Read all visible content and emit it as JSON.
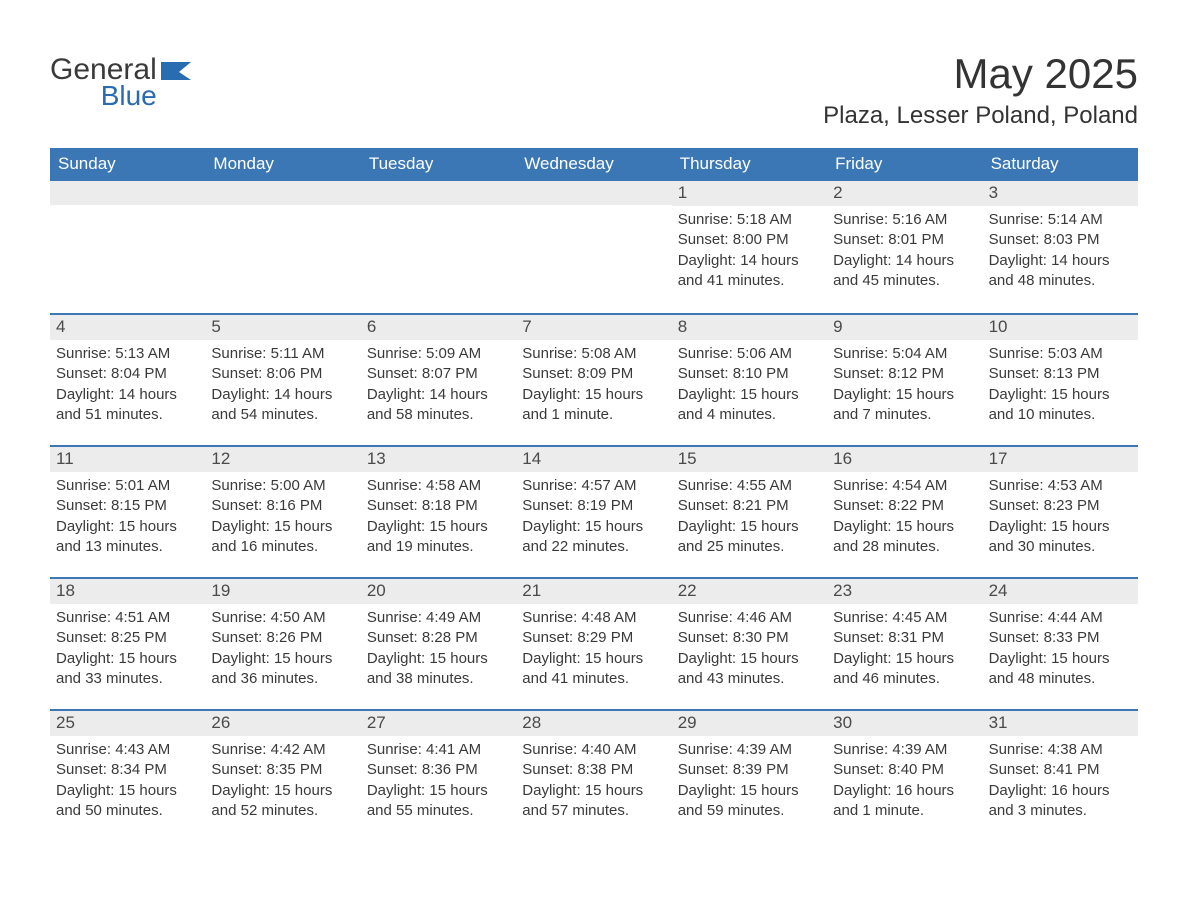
{
  "brand": {
    "word1": "General",
    "word2": "Blue"
  },
  "title": "May 2025",
  "location": "Plaza, Lesser Poland, Poland",
  "colors": {
    "header_bg": "#3b77b5",
    "header_text": "#ffffff",
    "daynum_bg": "#ececec",
    "text": "#3a3a3a",
    "border": "#3b77b5",
    "brand_blue": "#2a6cb0"
  },
  "daysOfWeek": [
    "Sunday",
    "Monday",
    "Tuesday",
    "Wednesday",
    "Thursday",
    "Friday",
    "Saturday"
  ],
  "blanksBefore": 4,
  "label_sunrise": "Sunrise: ",
  "label_sunset": "Sunset: ",
  "label_daylight": "Daylight: ",
  "days": [
    {
      "n": 1,
      "sunrise": "5:18 AM",
      "sunset": "8:00 PM",
      "daylight": "14 hours and 41 minutes."
    },
    {
      "n": 2,
      "sunrise": "5:16 AM",
      "sunset": "8:01 PM",
      "daylight": "14 hours and 45 minutes."
    },
    {
      "n": 3,
      "sunrise": "5:14 AM",
      "sunset": "8:03 PM",
      "daylight": "14 hours and 48 minutes."
    },
    {
      "n": 4,
      "sunrise": "5:13 AM",
      "sunset": "8:04 PM",
      "daylight": "14 hours and 51 minutes."
    },
    {
      "n": 5,
      "sunrise": "5:11 AM",
      "sunset": "8:06 PM",
      "daylight": "14 hours and 54 minutes."
    },
    {
      "n": 6,
      "sunrise": "5:09 AM",
      "sunset": "8:07 PM",
      "daylight": "14 hours and 58 minutes."
    },
    {
      "n": 7,
      "sunrise": "5:08 AM",
      "sunset": "8:09 PM",
      "daylight": "15 hours and 1 minute."
    },
    {
      "n": 8,
      "sunrise": "5:06 AM",
      "sunset": "8:10 PM",
      "daylight": "15 hours and 4 minutes."
    },
    {
      "n": 9,
      "sunrise": "5:04 AM",
      "sunset": "8:12 PM",
      "daylight": "15 hours and 7 minutes."
    },
    {
      "n": 10,
      "sunrise": "5:03 AM",
      "sunset": "8:13 PM",
      "daylight": "15 hours and 10 minutes."
    },
    {
      "n": 11,
      "sunrise": "5:01 AM",
      "sunset": "8:15 PM",
      "daylight": "15 hours and 13 minutes."
    },
    {
      "n": 12,
      "sunrise": "5:00 AM",
      "sunset": "8:16 PM",
      "daylight": "15 hours and 16 minutes."
    },
    {
      "n": 13,
      "sunrise": "4:58 AM",
      "sunset": "8:18 PM",
      "daylight": "15 hours and 19 minutes."
    },
    {
      "n": 14,
      "sunrise": "4:57 AM",
      "sunset": "8:19 PM",
      "daylight": "15 hours and 22 minutes."
    },
    {
      "n": 15,
      "sunrise": "4:55 AM",
      "sunset": "8:21 PM",
      "daylight": "15 hours and 25 minutes."
    },
    {
      "n": 16,
      "sunrise": "4:54 AM",
      "sunset": "8:22 PM",
      "daylight": "15 hours and 28 minutes."
    },
    {
      "n": 17,
      "sunrise": "4:53 AM",
      "sunset": "8:23 PM",
      "daylight": "15 hours and 30 minutes."
    },
    {
      "n": 18,
      "sunrise": "4:51 AM",
      "sunset": "8:25 PM",
      "daylight": "15 hours and 33 minutes."
    },
    {
      "n": 19,
      "sunrise": "4:50 AM",
      "sunset": "8:26 PM",
      "daylight": "15 hours and 36 minutes."
    },
    {
      "n": 20,
      "sunrise": "4:49 AM",
      "sunset": "8:28 PM",
      "daylight": "15 hours and 38 minutes."
    },
    {
      "n": 21,
      "sunrise": "4:48 AM",
      "sunset": "8:29 PM",
      "daylight": "15 hours and 41 minutes."
    },
    {
      "n": 22,
      "sunrise": "4:46 AM",
      "sunset": "8:30 PM",
      "daylight": "15 hours and 43 minutes."
    },
    {
      "n": 23,
      "sunrise": "4:45 AM",
      "sunset": "8:31 PM",
      "daylight": "15 hours and 46 minutes."
    },
    {
      "n": 24,
      "sunrise": "4:44 AM",
      "sunset": "8:33 PM",
      "daylight": "15 hours and 48 minutes."
    },
    {
      "n": 25,
      "sunrise": "4:43 AM",
      "sunset": "8:34 PM",
      "daylight": "15 hours and 50 minutes."
    },
    {
      "n": 26,
      "sunrise": "4:42 AM",
      "sunset": "8:35 PM",
      "daylight": "15 hours and 52 minutes."
    },
    {
      "n": 27,
      "sunrise": "4:41 AM",
      "sunset": "8:36 PM",
      "daylight": "15 hours and 55 minutes."
    },
    {
      "n": 28,
      "sunrise": "4:40 AM",
      "sunset": "8:38 PM",
      "daylight": "15 hours and 57 minutes."
    },
    {
      "n": 29,
      "sunrise": "4:39 AM",
      "sunset": "8:39 PM",
      "daylight": "15 hours and 59 minutes."
    },
    {
      "n": 30,
      "sunrise": "4:39 AM",
      "sunset": "8:40 PM",
      "daylight": "16 hours and 1 minute."
    },
    {
      "n": 31,
      "sunrise": "4:38 AM",
      "sunset": "8:41 PM",
      "daylight": "16 hours and 3 minutes."
    }
  ]
}
